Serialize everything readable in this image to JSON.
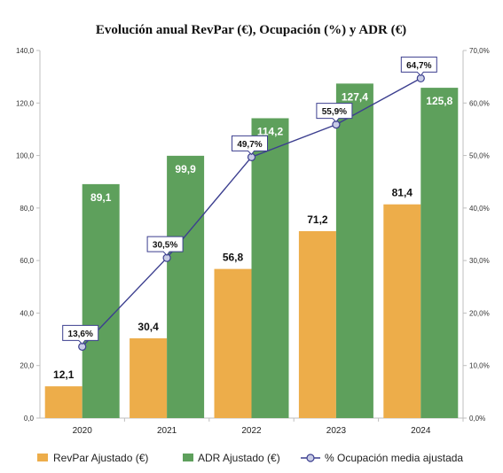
{
  "chart_data": {
    "type": "bar",
    "title": "Evolución anual RevPar (€), Ocupación (%) y ADR (€)",
    "categories": [
      "2020",
      "2021",
      "2022",
      "2023",
      "2024"
    ],
    "series": [
      {
        "name": "RevPar Ajustado (€)",
        "kind": "bar",
        "axis": "left",
        "color": "#EDAD4A",
        "values": [
          12.1,
          30.4,
          56.8,
          71.2,
          81.4
        ],
        "labels": [
          "12,1",
          "30,4",
          "56,8",
          "71,2",
          "81,4"
        ]
      },
      {
        "name": "ADR Ajustado (€)",
        "kind": "bar",
        "axis": "left",
        "color": "#5EA05C",
        "values": [
          89.1,
          99.9,
          114.2,
          127.4,
          125.8
        ],
        "labels": [
          "89,1",
          "99,9",
          "114,2",
          "127,4",
          "125,8"
        ]
      },
      {
        "name": "% Ocupación media ajustada",
        "kind": "line",
        "axis": "right",
        "color": "#3C3F8F",
        "values": [
          13.6,
          30.5,
          49.7,
          55.9,
          64.7
        ],
        "labels": [
          "13,6%",
          "30,5%",
          "49,7%",
          "55,9%",
          "64,7%"
        ]
      }
    ],
    "left_axis": {
      "min": 0,
      "max": 140,
      "ticks": [
        "0,0",
        "20,0",
        "40,0",
        "60,0",
        "80,0",
        "100,0",
        "120,0",
        "140,0"
      ]
    },
    "right_axis": {
      "min": 0,
      "max": 70,
      "ticks": [
        "0,0%",
        "10,0%",
        "20,0%",
        "30,0%",
        "40,0%",
        "50,0%",
        "60,0%",
        "70,0%"
      ]
    },
    "grid": false,
    "legend_position": "bottom"
  }
}
